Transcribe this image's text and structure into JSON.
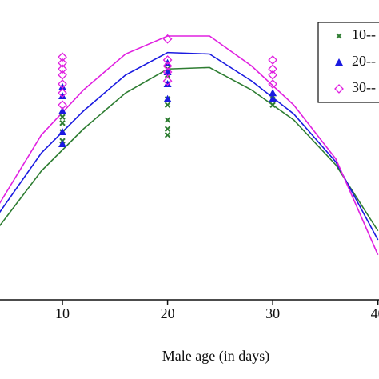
{
  "chart_data": {
    "type": "scatter",
    "xlabel": "Male age (in days)",
    "xlim": [
      4.07,
      40.1
    ],
    "xticks": [
      10,
      20,
      30,
      40
    ],
    "ylim": [
      0,
      100
    ],
    "legend": "upper right",
    "series": [
      {
        "name": "10--",
        "color": "#2e7d32",
        "marker": "x",
        "x": [
          10,
          10,
          10,
          10,
          20,
          20,
          20,
          20,
          20,
          20,
          20,
          20,
          30,
          30
        ],
        "values": [
          61,
          59,
          56,
          53,
          77,
          75,
          72,
          67,
          65,
          60,
          57,
          55,
          68,
          65
        ],
        "fit_x": [
          4,
          8,
          12,
          16,
          20,
          24,
          28,
          32,
          36,
          40
        ],
        "fit": [
          24.5,
          43,
          57,
          69,
          77,
          77.5,
          70,
          60,
          45,
          23
        ]
      },
      {
        "name": "20--",
        "color": "#1a1ae0",
        "marker": "triangle",
        "x": [
          10,
          10,
          10,
          10,
          10,
          20,
          20,
          20,
          20,
          30,
          30
        ],
        "values": [
          71,
          68,
          63,
          56,
          52,
          79,
          76,
          72,
          67,
          69,
          67
        ],
        "fit_x": [
          4,
          8,
          12,
          16,
          20,
          24,
          28,
          32,
          36,
          40
        ],
        "fit": [
          29,
          49,
          63,
          75,
          82.5,
          82,
          73,
          62,
          46,
          20
        ]
      },
      {
        "name": "30--",
        "color": "#e020e0",
        "marker": "diamond",
        "x": [
          10,
          10,
          10,
          10,
          10,
          10,
          10,
          20,
          20,
          20,
          20,
          20,
          30,
          30,
          30,
          30
        ],
        "values": [
          81,
          79,
          77,
          75,
          72,
          69,
          65,
          87,
          80,
          78,
          76,
          73,
          80,
          77,
          75,
          72
        ],
        "fit_x": [
          4,
          8,
          12,
          16,
          20,
          24,
          28,
          32,
          36,
          40
        ],
        "fit": [
          32,
          55,
          70,
          82,
          88,
          88,
          78,
          65,
          47,
          15
        ]
      }
    ]
  }
}
